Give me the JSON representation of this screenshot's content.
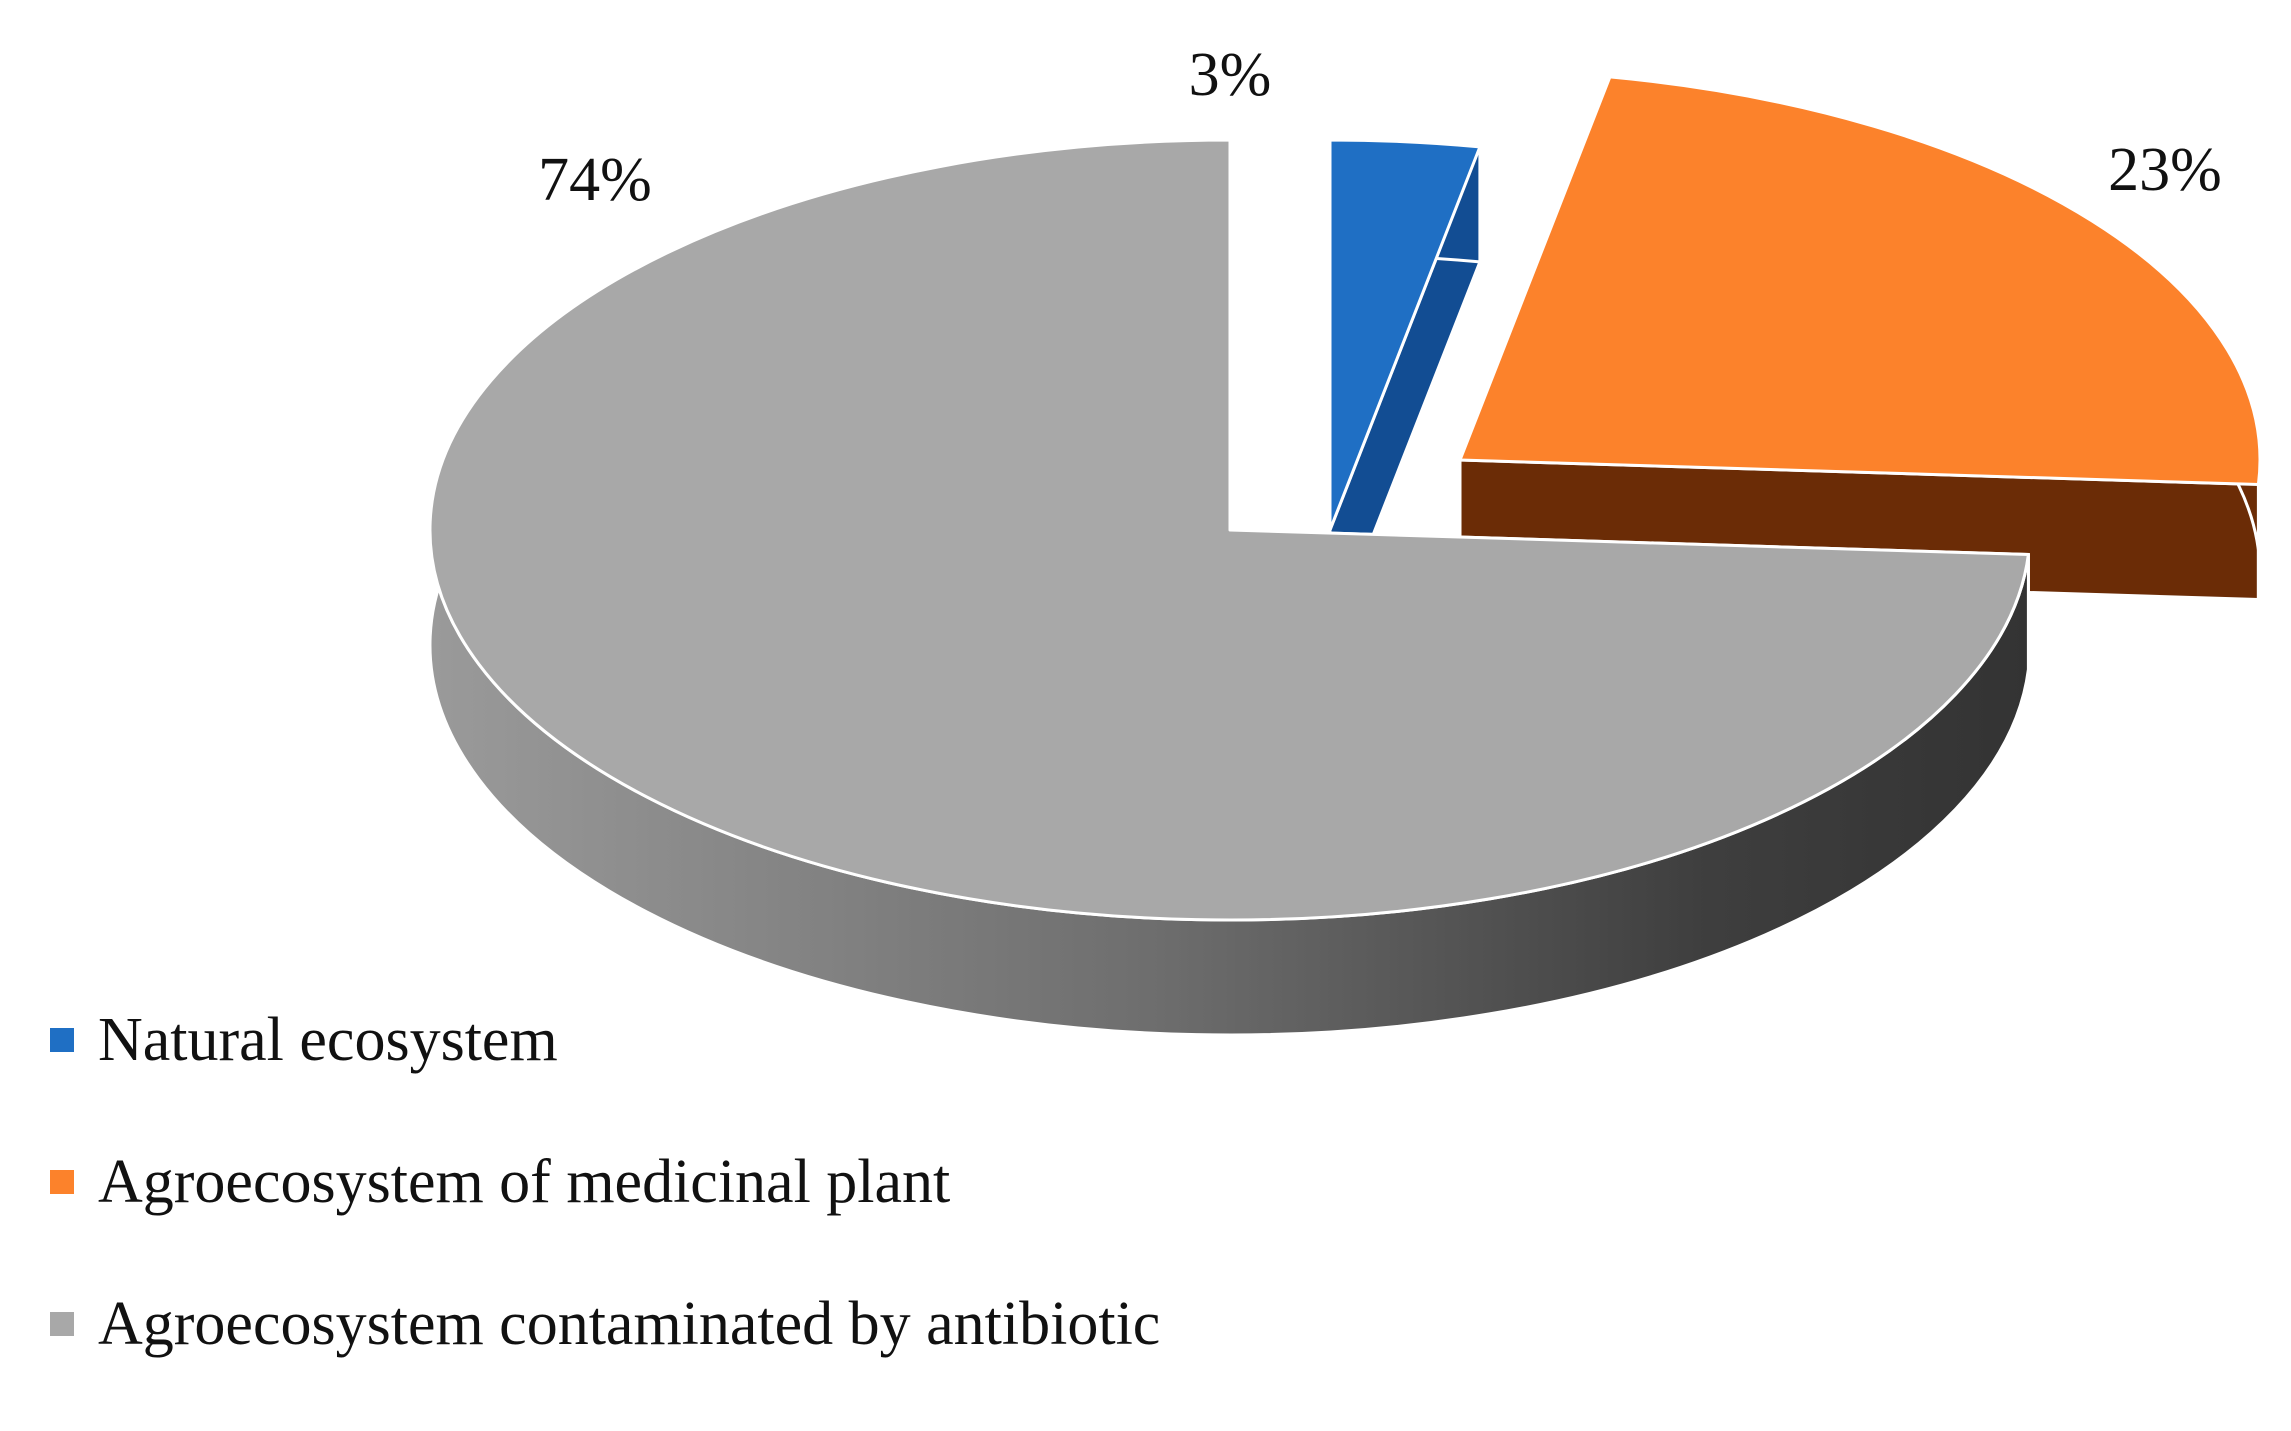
{
  "chart_data": {
    "type": "pie",
    "style": "3d-exploded",
    "legend_position": "bottom-left",
    "labels": [
      "Natural ecosystem",
      "Agroecosystem of medicinal plant",
      "Agroecosystem contaminated by antibiotic"
    ],
    "values": [
      3,
      23,
      74
    ],
    "value_labels": [
      "3%",
      "23%",
      "74%"
    ],
    "colors": {
      "Natural ecosystem": {
        "top": "#1f6fc4",
        "side": "#124d93"
      },
      "Agroecosystem of medicinal plant": {
        "top": "#fc822b",
        "side": "#6b2c06"
      },
      "Agroecosystem contaminated by antibiotic": {
        "top": "#a8a8a8",
        "side_light": "#8a8a8a",
        "side_dark": "#3c3c3c"
      }
    }
  }
}
